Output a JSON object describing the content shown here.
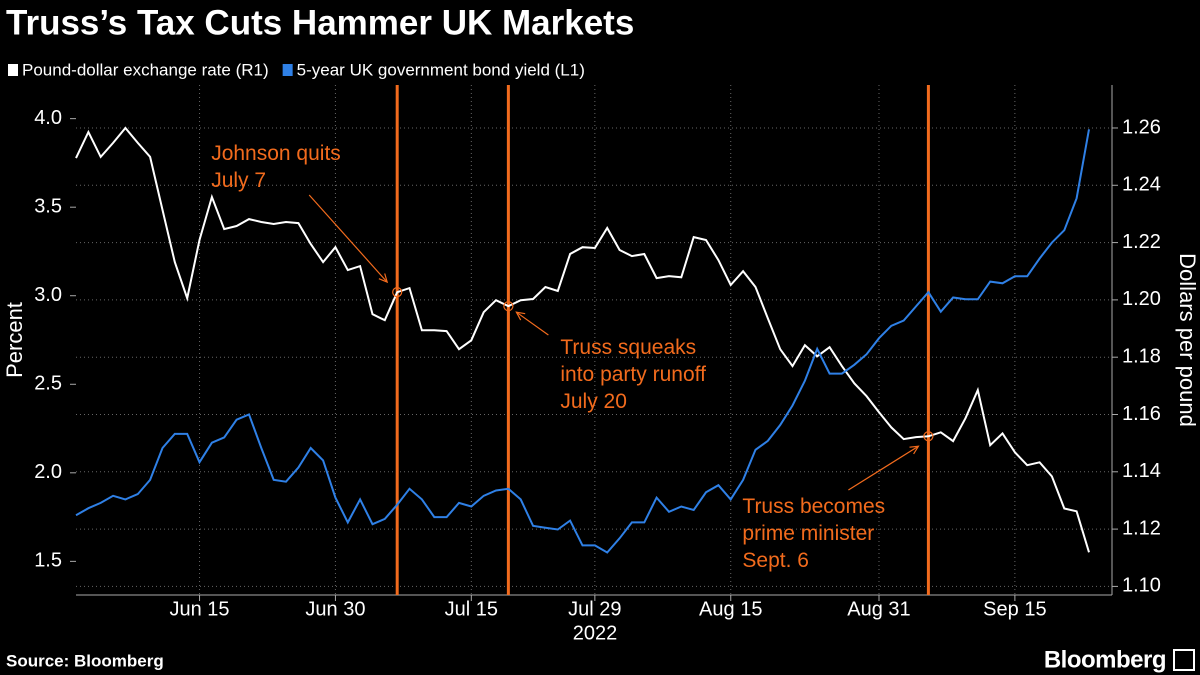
{
  "chart_data": {
    "type": "line",
    "title": "Truss’s Tax Cuts Hammer UK Markets",
    "ylabel": "Percent",
    "y2label": "Dollars per pound",
    "xlabel": "2022",
    "source": "Source: Bloomberg",
    "brand": "Bloomberg",
    "x": [
      "2022-06-01",
      "2022-06-02",
      "2022-06-03",
      "2022-06-06",
      "2022-06-07",
      "2022-06-08",
      "2022-06-09",
      "2022-06-10",
      "2022-06-13",
      "2022-06-14",
      "2022-06-15",
      "2022-06-16",
      "2022-06-17",
      "2022-06-20",
      "2022-06-21",
      "2022-06-22",
      "2022-06-23",
      "2022-06-24",
      "2022-06-27",
      "2022-06-28",
      "2022-06-29",
      "2022-06-30",
      "2022-07-01",
      "2022-07-04",
      "2022-07-05",
      "2022-07-06",
      "2022-07-07",
      "2022-07-08",
      "2022-07-11",
      "2022-07-12",
      "2022-07-13",
      "2022-07-14",
      "2022-07-15",
      "2022-07-18",
      "2022-07-19",
      "2022-07-20",
      "2022-07-21",
      "2022-07-22",
      "2022-07-25",
      "2022-07-26",
      "2022-07-27",
      "2022-07-28",
      "2022-07-29",
      "2022-08-01",
      "2022-08-02",
      "2022-08-03",
      "2022-08-04",
      "2022-08-05",
      "2022-08-08",
      "2022-08-09",
      "2022-08-10",
      "2022-08-11",
      "2022-08-12",
      "2022-08-15",
      "2022-08-16",
      "2022-08-17",
      "2022-08-18",
      "2022-08-19",
      "2022-08-22",
      "2022-08-23",
      "2022-08-24",
      "2022-08-25",
      "2022-08-26",
      "2022-08-29",
      "2022-08-30",
      "2022-08-31",
      "2022-09-01",
      "2022-09-02",
      "2022-09-05",
      "2022-09-06",
      "2022-09-07",
      "2022-09-08",
      "2022-09-09",
      "2022-09-12",
      "2022-09-13",
      "2022-09-14",
      "2022-09-15",
      "2022-09-16",
      "2022-09-19",
      "2022-09-20",
      "2022-09-21",
      "2022-09-22",
      "2022-09-23"
    ],
    "series": [
      {
        "name": "Pound-dollar exchange rate (R1)",
        "color": "#ffffff",
        "axis": "y2",
        "values": [
          1.2495,
          1.2586,
          1.2499,
          1.2548,
          1.26,
          1.2548,
          1.2499,
          1.2314,
          1.2132,
          1.2006,
          1.2209,
          1.2359,
          1.2247,
          1.2258,
          1.2282,
          1.2272,
          1.2265,
          1.2272,
          1.2268,
          1.2195,
          1.2132,
          1.2184,
          1.2104,
          1.2118,
          1.195,
          1.1929,
          1.2027,
          1.2041,
          1.1894,
          1.1894,
          1.1891,
          1.1828,
          1.1859,
          1.1957,
          1.1999,
          1.1978,
          1.1999,
          1.2003,
          1.2045,
          1.2031,
          1.216,
          1.2184,
          1.2181,
          1.2251,
          1.2174,
          1.2153,
          1.216,
          1.2076,
          1.2083,
          1.2079,
          1.2219,
          1.2209,
          1.2139,
          1.2052,
          1.21,
          1.2045,
          1.1936,
          1.1828,
          1.1769,
          1.1842,
          1.1803,
          1.1835,
          1.1769,
          1.1709,
          1.1664,
          1.1608,
          1.1555,
          1.1514,
          1.1521,
          1.1524,
          1.1538,
          1.1507,
          1.1587,
          1.1685,
          1.1493,
          1.1534,
          1.1468,
          1.1423,
          1.1433,
          1.1384,
          1.1272,
          1.1262,
          1.1119
        ]
      },
      {
        "name": "5-year UK government bond yield (L1)",
        "color": "#2f80e6",
        "axis": "y",
        "values": [
          1.76,
          1.8,
          1.83,
          1.87,
          1.85,
          1.88,
          1.96,
          2.14,
          2.22,
          2.22,
          2.06,
          2.17,
          2.2,
          2.3,
          2.33,
          2.14,
          1.96,
          1.95,
          2.03,
          2.14,
          2.07,
          1.86,
          1.72,
          1.85,
          1.71,
          1.74,
          1.82,
          1.91,
          1.85,
          1.75,
          1.75,
          1.83,
          1.81,
          1.87,
          1.9,
          1.91,
          1.85,
          1.7,
          1.69,
          1.68,
          1.73,
          1.59,
          1.59,
          1.55,
          1.63,
          1.72,
          1.72,
          1.86,
          1.78,
          1.81,
          1.79,
          1.89,
          1.93,
          1.85,
          1.96,
          2.13,
          2.18,
          2.27,
          2.38,
          2.52,
          2.7,
          2.56,
          2.56,
          2.61,
          2.67,
          2.76,
          2.83,
          2.86,
          2.94,
          3.02,
          2.91,
          2.99,
          2.98,
          2.98,
          3.08,
          3.07,
          3.11,
          3.11,
          3.21,
          3.3,
          3.37,
          3.55,
          3.94
        ]
      }
    ],
    "ylim": [
      1.31,
      4.19
    ],
    "yticks": [
      {
        "value": 1.5,
        "label": "1.5"
      },
      {
        "value": 2,
        "label": "2.0"
      },
      {
        "value": 2.5,
        "label": "2.5"
      },
      {
        "value": 3,
        "label": "3.0"
      },
      {
        "value": 3.5,
        "label": "3.5"
      },
      {
        "value": 4,
        "label": "4.0"
      }
    ],
    "y2lim": [
      1.097,
      1.275
    ],
    "y2ticks": [
      {
        "value": 1.1,
        "label": "1.10"
      },
      {
        "value": 1.12,
        "label": "1.12"
      },
      {
        "value": 1.14,
        "label": "1.14"
      },
      {
        "value": 1.16,
        "label": "1.16"
      },
      {
        "value": 1.18,
        "label": "1.18"
      },
      {
        "value": 1.2,
        "label": "1.20"
      },
      {
        "value": 1.22,
        "label": "1.22"
      },
      {
        "value": 1.24,
        "label": "1.24"
      },
      {
        "value": 1.26,
        "label": "1.26"
      }
    ],
    "xticks": [
      {
        "value": "2022-06-15",
        "label": "Jun 15"
      },
      {
        "value": "2022-06-30",
        "label": "Jun 30"
      },
      {
        "value": "2022-07-15",
        "label": "Jul 15"
      },
      {
        "value": "2022-07-29",
        "label": "Jul 29"
      },
      {
        "value": "2022-08-15",
        "label": "Aug 15"
      },
      {
        "value": "2022-08-31",
        "label": "Aug 31"
      },
      {
        "value": "2022-09-15",
        "label": "Sep 15"
      }
    ],
    "grid": true,
    "event_color": "#f26b1d",
    "events": [
      {
        "x": "2022-07-07",
        "label": [
          "Johnson quits",
          "July 7"
        ]
      },
      {
        "x": "2022-07-20",
        "label": [
          "Truss squeaks",
          "into party runoff",
          "July 20"
        ]
      },
      {
        "x": "2022-09-06",
        "label": [
          "Truss becomes",
          "prime minister",
          "Sept. 6"
        ]
      }
    ]
  }
}
